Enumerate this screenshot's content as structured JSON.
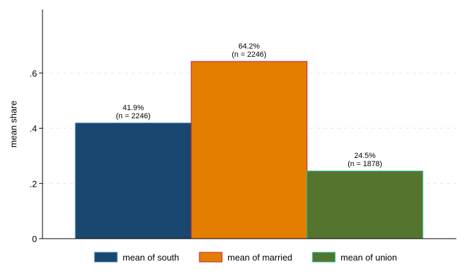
{
  "chart_data": {
    "type": "bar",
    "ylabel": "mean share",
    "ylim": [
      0,
      0.83
    ],
    "yticks": [
      {
        "value": 0,
        "label": "0"
      },
      {
        "value": 0.2,
        "label": ".2"
      },
      {
        "value": 0.4,
        "label": ".4"
      },
      {
        "value": 0.6,
        "label": ".6"
      }
    ],
    "grid": true,
    "legend_position": "bottom",
    "series": [
      {
        "name": "mean of south",
        "value": 0.419,
        "label_pct": "41.9%",
        "label_n": "(n = 2246)",
        "color": "#1a476f",
        "edge": "#3a7fc0"
      },
      {
        "name": "mean of married",
        "value": 0.642,
        "label_pct": "64.2%",
        "label_n": "(n = 2246)",
        "color": "#e37e00",
        "edge": "#c21f3a"
      },
      {
        "name": "mean of union",
        "value": 0.245,
        "label_pct": "24.5%",
        "label_n": "(n = 1878)",
        "color": "#55752f",
        "edge": "#1fbf8f"
      }
    ]
  }
}
